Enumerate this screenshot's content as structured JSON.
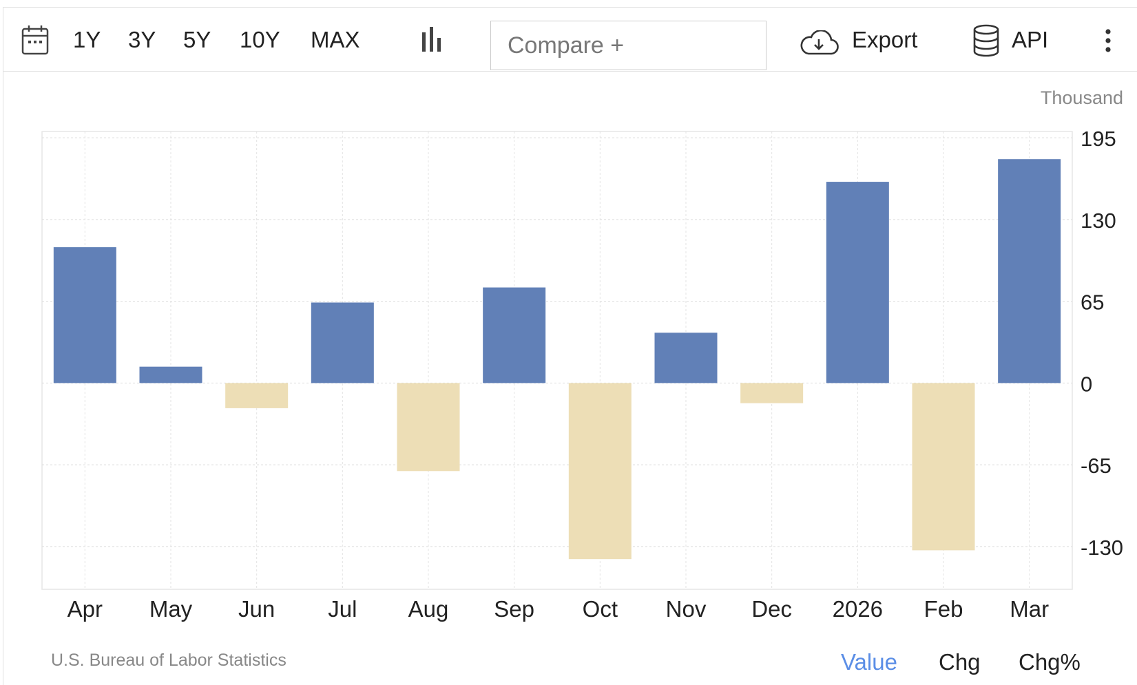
{
  "toolbar": {
    "ranges": [
      "1Y",
      "3Y",
      "5Y",
      "10Y",
      "MAX"
    ],
    "compare_placeholder": "Compare +",
    "export_label": "Export",
    "api_label": "API"
  },
  "footer": {
    "source": "U.S. Bureau of Labor Statistics",
    "views": [
      "Value",
      "Chg",
      "Chg%"
    ],
    "active_view": "Value"
  },
  "colors": {
    "positive": "#6180b7",
    "negative": "#eddeb6",
    "active_view": "#5b8ee6"
  },
  "chart_data": {
    "type": "bar",
    "unit": "Thousand",
    "categories": [
      "Apr",
      "May",
      "Jun",
      "Jul",
      "Aug",
      "Sep",
      "Oct",
      "Nov",
      "Dec",
      "2026",
      "Feb",
      "Mar"
    ],
    "values": [
      108,
      13,
      -20,
      64,
      -70,
      76,
      -140,
      40,
      -16,
      160,
      -133,
      178
    ],
    "y_ticks": [
      195,
      130,
      65,
      0,
      -65,
      -130
    ],
    "ylim": [
      -164,
      200
    ],
    "grid": true,
    "axis_side": "right"
  }
}
